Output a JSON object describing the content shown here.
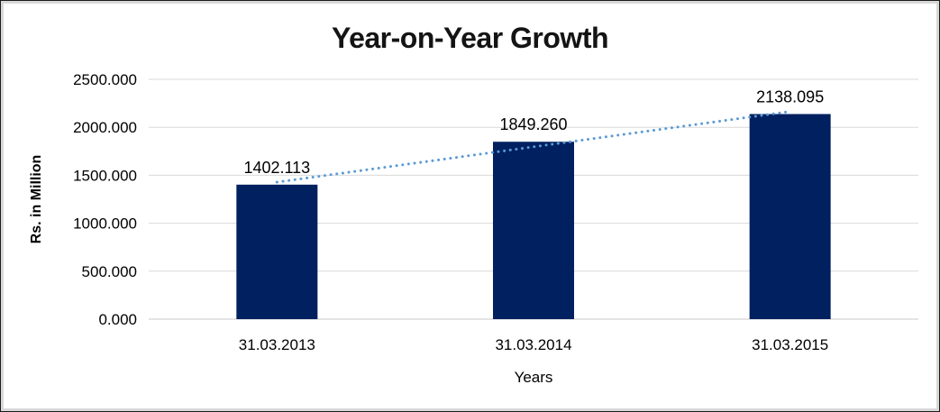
{
  "chart_data": {
    "type": "bar",
    "title": "Year-on-Year Growth",
    "xlabel": "Years",
    "ylabel": "Rs. in Million",
    "categories": [
      "31.03.2013",
      "31.03.2014",
      "31.03.2015"
    ],
    "values": [
      1402.113,
      1849.26,
      2138.095
    ],
    "data_labels": [
      "1402.113",
      "1849.260",
      "2138.095"
    ],
    "ylim": [
      0,
      2500
    ],
    "y_tick_step": 500,
    "y_tick_labels": [
      "0.000",
      "500.000",
      "1000.000",
      "1500.000",
      "2000.000",
      "2500.000"
    ],
    "grid": true,
    "legend": "none",
    "trendline": {
      "type": "linear",
      "style": "dotted"
    },
    "colors": {
      "bar": "#002060",
      "trendline": "#5b9bd5",
      "gridline": "#d9d9d9",
      "axis_line": "#c9c9c9",
      "text": "#000000",
      "background": "#ffffff"
    }
  }
}
